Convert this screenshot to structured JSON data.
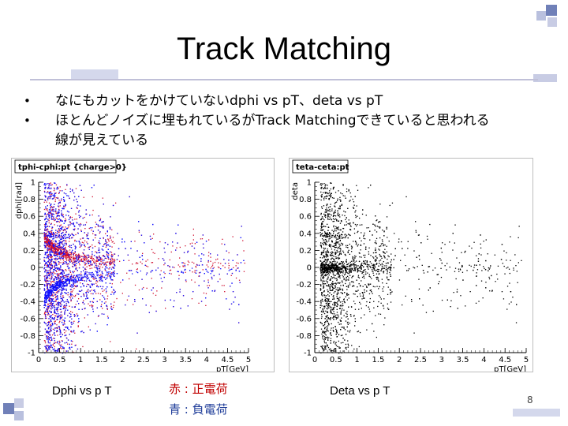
{
  "slide": {
    "title": "Track Matching",
    "bullets": [
      "なにもカットをかけていないdphi vs pT、deta vs pT",
      "ほとんどノイズに埋もれているがTrack Matchingできていると思われる線が見えている"
    ],
    "bullet_2_line1": "ほとんどノイズに埋もれているがTrack Matchingできていると思われる",
    "bullet_2_line2": "線が見えている",
    "caption_left": "Dphi vs p T",
    "caption_right": "Deta vs p T",
    "legend_red": "赤 : 正電荷",
    "legend_blue": "青 : 負電荷",
    "page_number": "8",
    "colors": {
      "accent": "#c0c0d8",
      "red": "#c00000",
      "blue": "#1f3d99"
    }
  },
  "chart_data": [
    {
      "type": "scatter",
      "title": "tphi-cphi:pt {charge>0}",
      "xlabel": "pT[GeV]",
      "ylabel": "dphi[rad]",
      "xlim": [
        0,
        5
      ],
      "ylim": [
        -1,
        1
      ],
      "x_ticks": [
        "0",
        "0.5",
        "1",
        "1.5",
        "2",
        "2.5",
        "3",
        "3.5",
        "4",
        "4.5",
        "5"
      ],
      "y_ticks": [
        "-1",
        "-0.8",
        "-0.6",
        "-0.4",
        "-0.2",
        "0",
        "0.2",
        "0.4",
        "0.6",
        "0.8",
        "1"
      ],
      "series": [
        {
          "color": "#d01030",
          "band_center": 0.1,
          "trend": "positive"
        },
        {
          "color": "#1010ff",
          "band_center": -0.1,
          "trend": "negative"
        }
      ],
      "grid": false
    },
    {
      "type": "scatter",
      "title": "teta-ceta:pt",
      "xlabel": "pT[GeV]",
      "ylabel": "deta",
      "xlim": [
        0,
        5
      ],
      "ylim": [
        -1,
        1
      ],
      "x_ticks": [
        "0",
        "0.5",
        "1",
        "1.5",
        "2",
        "2.5",
        "3",
        "3.5",
        "4",
        "4.5",
        "5"
      ],
      "y_ticks": [
        "-1",
        "-0.8",
        "-0.6",
        "-0.4",
        "-0.2",
        "0",
        "0.2",
        "0.4",
        "0.6",
        "0.8",
        "1"
      ],
      "series": [
        {
          "color": "#000000",
          "band_center": 0.0,
          "trend": "none"
        }
      ],
      "grid": false
    }
  ]
}
